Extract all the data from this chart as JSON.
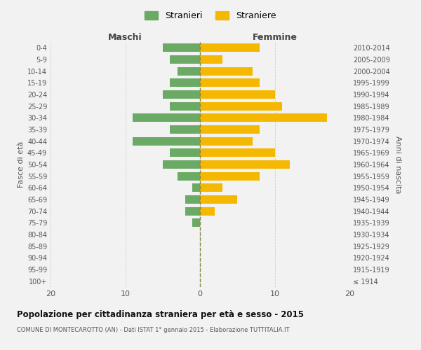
{
  "age_groups": [
    "100+",
    "95-99",
    "90-94",
    "85-89",
    "80-84",
    "75-79",
    "70-74",
    "65-69",
    "60-64",
    "55-59",
    "50-54",
    "45-49",
    "40-44",
    "35-39",
    "30-34",
    "25-29",
    "20-24",
    "15-19",
    "10-14",
    "5-9",
    "0-4"
  ],
  "birth_years": [
    "≤ 1914",
    "1915-1919",
    "1920-1924",
    "1925-1929",
    "1930-1934",
    "1935-1939",
    "1940-1944",
    "1945-1949",
    "1950-1954",
    "1955-1959",
    "1960-1964",
    "1965-1969",
    "1970-1974",
    "1975-1979",
    "1980-1984",
    "1985-1989",
    "1990-1994",
    "1995-1999",
    "2000-2004",
    "2005-2009",
    "2010-2014"
  ],
  "maschi": [
    0,
    0,
    0,
    0,
    0,
    1,
    2,
    2,
    1,
    3,
    5,
    4,
    9,
    4,
    9,
    4,
    5,
    4,
    3,
    4,
    5
  ],
  "femmine": [
    0,
    0,
    0,
    0,
    0,
    0,
    2,
    5,
    3,
    8,
    12,
    10,
    7,
    8,
    17,
    11,
    10,
    8,
    7,
    3,
    8
  ],
  "color_maschi": "#6aaa64",
  "color_femmine": "#f5b800",
  "title": "Popolazione per cittadinanza straniera per età e sesso - 2015",
  "subtitle": "COMUNE DI MONTECAROTTO (AN) - Dati ISTAT 1° gennaio 2015 - Elaborazione TUTTITALIA.IT",
  "ylabel_left": "Fasce di età",
  "ylabel_right": "Anni di nascita",
  "label_maschi": "Maschi",
  "label_femmine": "Femmine",
  "legend_maschi": "Stranieri",
  "legend_femmine": "Straniere",
  "xlim": 20,
  "background_color": "#f2f2f2",
  "grid_color": "#cccccc"
}
